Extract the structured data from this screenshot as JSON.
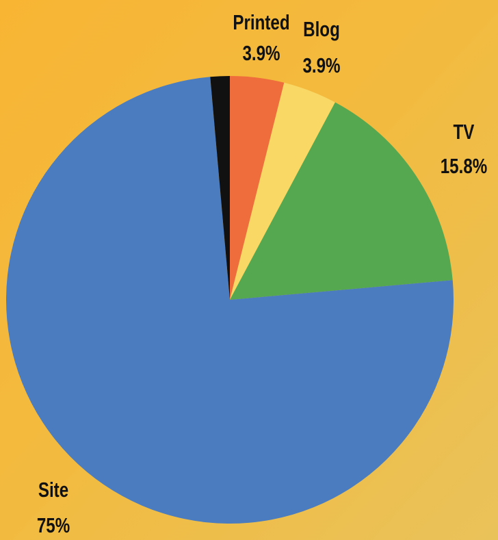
{
  "chart_data": {
    "type": "pie",
    "categories": [
      "Printed",
      "Blog",
      "TV",
      "Site",
      null
    ],
    "values": [
      3.9,
      3.9,
      15.8,
      75,
      1.4
    ],
    "value_labels": [
      "3.9%",
      "3.9%",
      "15.8%",
      "75%",
      null
    ],
    "colors": [
      "#ef6c3c",
      "#f9d866",
      "#55a84f",
      "#4a7cbf",
      "#111111"
    ]
  }
}
